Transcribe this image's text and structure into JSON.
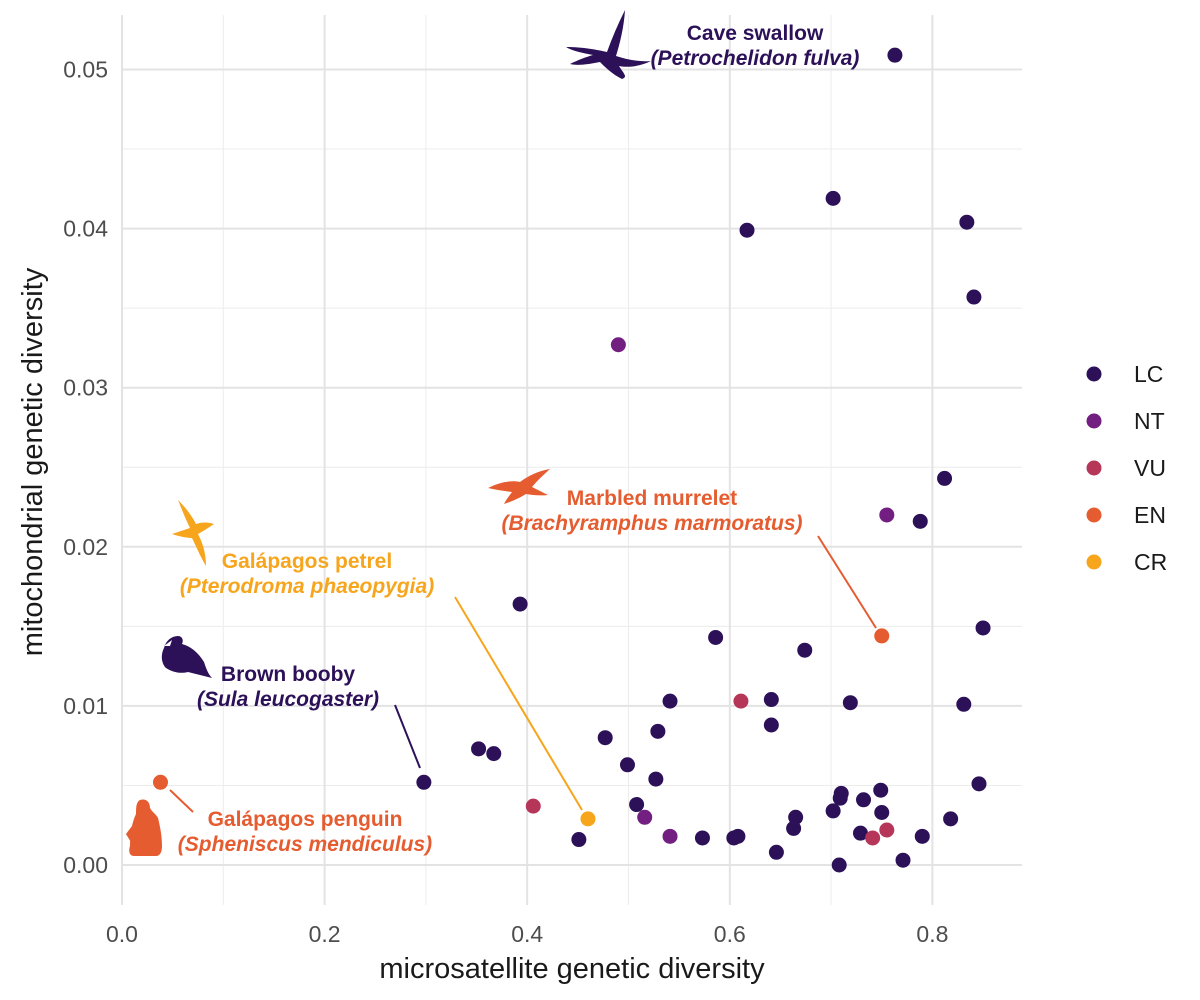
{
  "chart_data": {
    "type": "scatter",
    "title": "",
    "xlabel": "microsatellite genetic diversity",
    "ylabel": "mitochondrial genetic diversity",
    "xlim": [
      -0.01,
      0.89
    ],
    "ylim": [
      -0.0025,
      0.0535
    ],
    "x_ticks": [
      0.0,
      0.2,
      0.4,
      0.6,
      0.8
    ],
    "x_tick_labels": [
      "0.0",
      "0.2",
      "0.4",
      "0.6",
      "0.8"
    ],
    "y_ticks": [
      0.0,
      0.01,
      0.02,
      0.03,
      0.04,
      0.05
    ],
    "y_tick_labels": [
      "0.00",
      "0.01",
      "0.02",
      "0.03",
      "0.04",
      "0.05"
    ],
    "grid": true,
    "legend_position": "right",
    "legend": [
      {
        "key": "LC",
        "label": "LC",
        "color": "#2c1158"
      },
      {
        "key": "NT",
        "label": "NT",
        "color": "#721f81"
      },
      {
        "key": "VU",
        "label": "VU",
        "color": "#b6365a"
      },
      {
        "key": "EN",
        "label": "EN",
        "color": "#e55c30"
      },
      {
        "key": "CR",
        "label": "CR",
        "color": "#f6a51c"
      }
    ],
    "points": [
      {
        "x": 0.763,
        "y": 0.0509,
        "status": "LC"
      },
      {
        "x": 0.702,
        "y": 0.0419,
        "status": "LC"
      },
      {
        "x": 0.834,
        "y": 0.0404,
        "status": "LC"
      },
      {
        "x": 0.617,
        "y": 0.0399,
        "status": "LC"
      },
      {
        "x": 0.841,
        "y": 0.0357,
        "status": "LC"
      },
      {
        "x": 0.49,
        "y": 0.0327,
        "status": "NT"
      },
      {
        "x": 0.812,
        "y": 0.0243,
        "status": "LC"
      },
      {
        "x": 0.755,
        "y": 0.022,
        "status": "NT"
      },
      {
        "x": 0.788,
        "y": 0.0216,
        "status": "LC"
      },
      {
        "x": 0.393,
        "y": 0.0164,
        "status": "LC"
      },
      {
        "x": 0.85,
        "y": 0.0149,
        "status": "LC"
      },
      {
        "x": 0.75,
        "y": 0.0144,
        "status": "EN"
      },
      {
        "x": 0.586,
        "y": 0.0143,
        "status": "LC"
      },
      {
        "x": 0.674,
        "y": 0.0135,
        "status": "LC"
      },
      {
        "x": 0.641,
        "y": 0.0104,
        "status": "LC"
      },
      {
        "x": 0.541,
        "y": 0.0103,
        "status": "LC"
      },
      {
        "x": 0.611,
        "y": 0.0103,
        "status": "VU"
      },
      {
        "x": 0.719,
        "y": 0.0102,
        "status": "LC"
      },
      {
        "x": 0.831,
        "y": 0.0101,
        "status": "LC"
      },
      {
        "x": 0.641,
        "y": 0.0088,
        "status": "LC"
      },
      {
        "x": 0.529,
        "y": 0.0084,
        "status": "LC"
      },
      {
        "x": 0.477,
        "y": 0.008,
        "status": "LC"
      },
      {
        "x": 0.352,
        "y": 0.0073,
        "status": "LC"
      },
      {
        "x": 0.367,
        "y": 0.007,
        "status": "LC"
      },
      {
        "x": 0.499,
        "y": 0.0063,
        "status": "LC"
      },
      {
        "x": 0.527,
        "y": 0.0054,
        "status": "LC"
      },
      {
        "x": 0.298,
        "y": 0.0052,
        "status": "LC"
      },
      {
        "x": 0.038,
        "y": 0.0052,
        "status": "EN"
      },
      {
        "x": 0.846,
        "y": 0.0051,
        "status": "LC"
      },
      {
        "x": 0.749,
        "y": 0.0047,
        "status": "LC"
      },
      {
        "x": 0.71,
        "y": 0.0045,
        "status": "LC"
      },
      {
        "x": 0.709,
        "y": 0.0042,
        "status": "LC"
      },
      {
        "x": 0.732,
        "y": 0.0041,
        "status": "LC"
      },
      {
        "x": 0.508,
        "y": 0.0038,
        "status": "LC"
      },
      {
        "x": 0.406,
        "y": 0.0037,
        "status": "VU"
      },
      {
        "x": 0.702,
        "y": 0.0034,
        "status": "LC"
      },
      {
        "x": 0.75,
        "y": 0.0033,
        "status": "LC"
      },
      {
        "x": 0.665,
        "y": 0.003,
        "status": "LC"
      },
      {
        "x": 0.516,
        "y": 0.003,
        "status": "NT"
      },
      {
        "x": 0.46,
        "y": 0.0029,
        "status": "CR"
      },
      {
        "x": 0.818,
        "y": 0.0029,
        "status": "LC"
      },
      {
        "x": 0.663,
        "y": 0.0023,
        "status": "LC"
      },
      {
        "x": 0.755,
        "y": 0.0022,
        "status": "VU"
      },
      {
        "x": 0.729,
        "y": 0.002,
        "status": "LC"
      },
      {
        "x": 0.541,
        "y": 0.0018,
        "status": "NT"
      },
      {
        "x": 0.608,
        "y": 0.0018,
        "status": "LC"
      },
      {
        "x": 0.79,
        "y": 0.0018,
        "status": "LC"
      },
      {
        "x": 0.573,
        "y": 0.0017,
        "status": "LC"
      },
      {
        "x": 0.604,
        "y": 0.0017,
        "status": "LC"
      },
      {
        "x": 0.741,
        "y": 0.0017,
        "status": "VU"
      },
      {
        "x": 0.451,
        "y": 0.0016,
        "status": "LC"
      },
      {
        "x": 0.646,
        "y": 0.0008,
        "status": "LC"
      },
      {
        "x": 0.771,
        "y": 0.0003,
        "status": "LC"
      },
      {
        "x": 0.708,
        "y": 0.0,
        "status": "LC"
      }
    ],
    "annotations": [
      {
        "key": "swallow",
        "common": "Cave swallow",
        "scientific": "(Petrochelidon fulva)",
        "status": "LC",
        "icon": "swallow-icon"
      },
      {
        "key": "murrelet",
        "common": "Marbled murrelet",
        "scientific": "(Brachyramphus marmoratus)",
        "status": "EN",
        "icon": "murrelet-icon"
      },
      {
        "key": "petrel",
        "common": "Galápagos petrel",
        "scientific": "(Pterodroma phaeopygia)",
        "status": "CR",
        "icon": "petrel-icon"
      },
      {
        "key": "booby",
        "common": "Brown booby",
        "scientific": "(Sula leucogaster)",
        "status": "LC",
        "icon": "booby-icon"
      },
      {
        "key": "penguin",
        "common": "Galápagos penguin",
        "scientific": "(Spheniscus mendiculus)",
        "status": "EN",
        "icon": "penguin-icon"
      }
    ]
  }
}
